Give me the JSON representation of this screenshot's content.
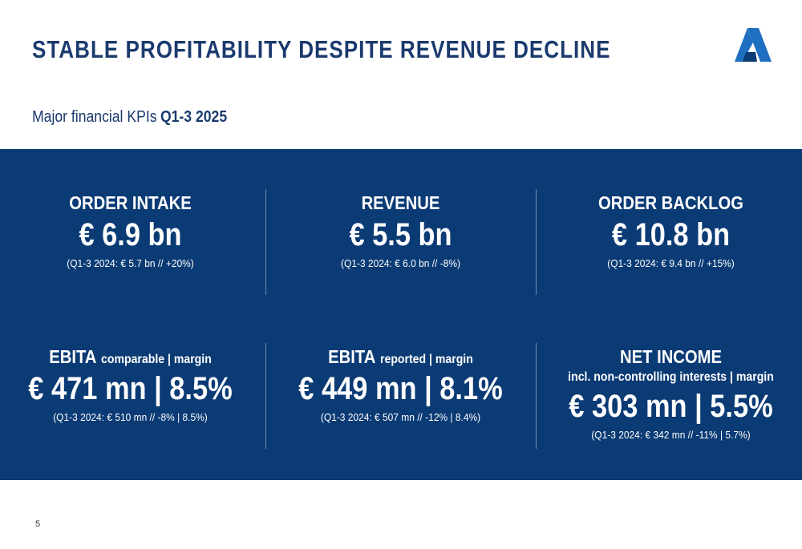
{
  "header": {
    "title": "STABLE PROFITABILITY DESPITE REVENUE DECLINE",
    "subtitle": "Major financial KPIs",
    "subtitle_period": "Q1-3 2025"
  },
  "kpis": [
    {
      "label": "ORDER INTAKE",
      "value": "€ 6.9 bn",
      "comparison": "(Q1-3 2024: € 5.7 bn // +20%)"
    },
    {
      "label": "REVENUE",
      "value": "€ 5.5 bn",
      "comparison": "(Q1-3 2024: € 6.0 bn // -8%)"
    },
    {
      "label": "ORDER BACKLOG",
      "value": "€ 10.8 bn",
      "comparison": "(Q1-3 2024: € 9.4 bn // +15%)"
    },
    {
      "label": "EBITA",
      "label_suffix": "comparable | margin",
      "value": "€ 471 mn | 8.5%",
      "comparison": "(Q1-3 2024: € 510 mn // -8% | 8.5%)"
    },
    {
      "label": "EBITA",
      "label_suffix": "reported | margin",
      "value": "€ 449 mn | 8.1%",
      "comparison": "(Q1-3 2024: € 507 mn // -12% | 8.4%)"
    },
    {
      "label": "NET INCOME",
      "note": "incl. non-controlling interests | margin",
      "value": "€ 303 mn | 5.5%",
      "comparison": "(Q1-3 2024: € 342 mn // -11% | 5.7%)"
    }
  ],
  "footer": {
    "page_number": "5"
  }
}
